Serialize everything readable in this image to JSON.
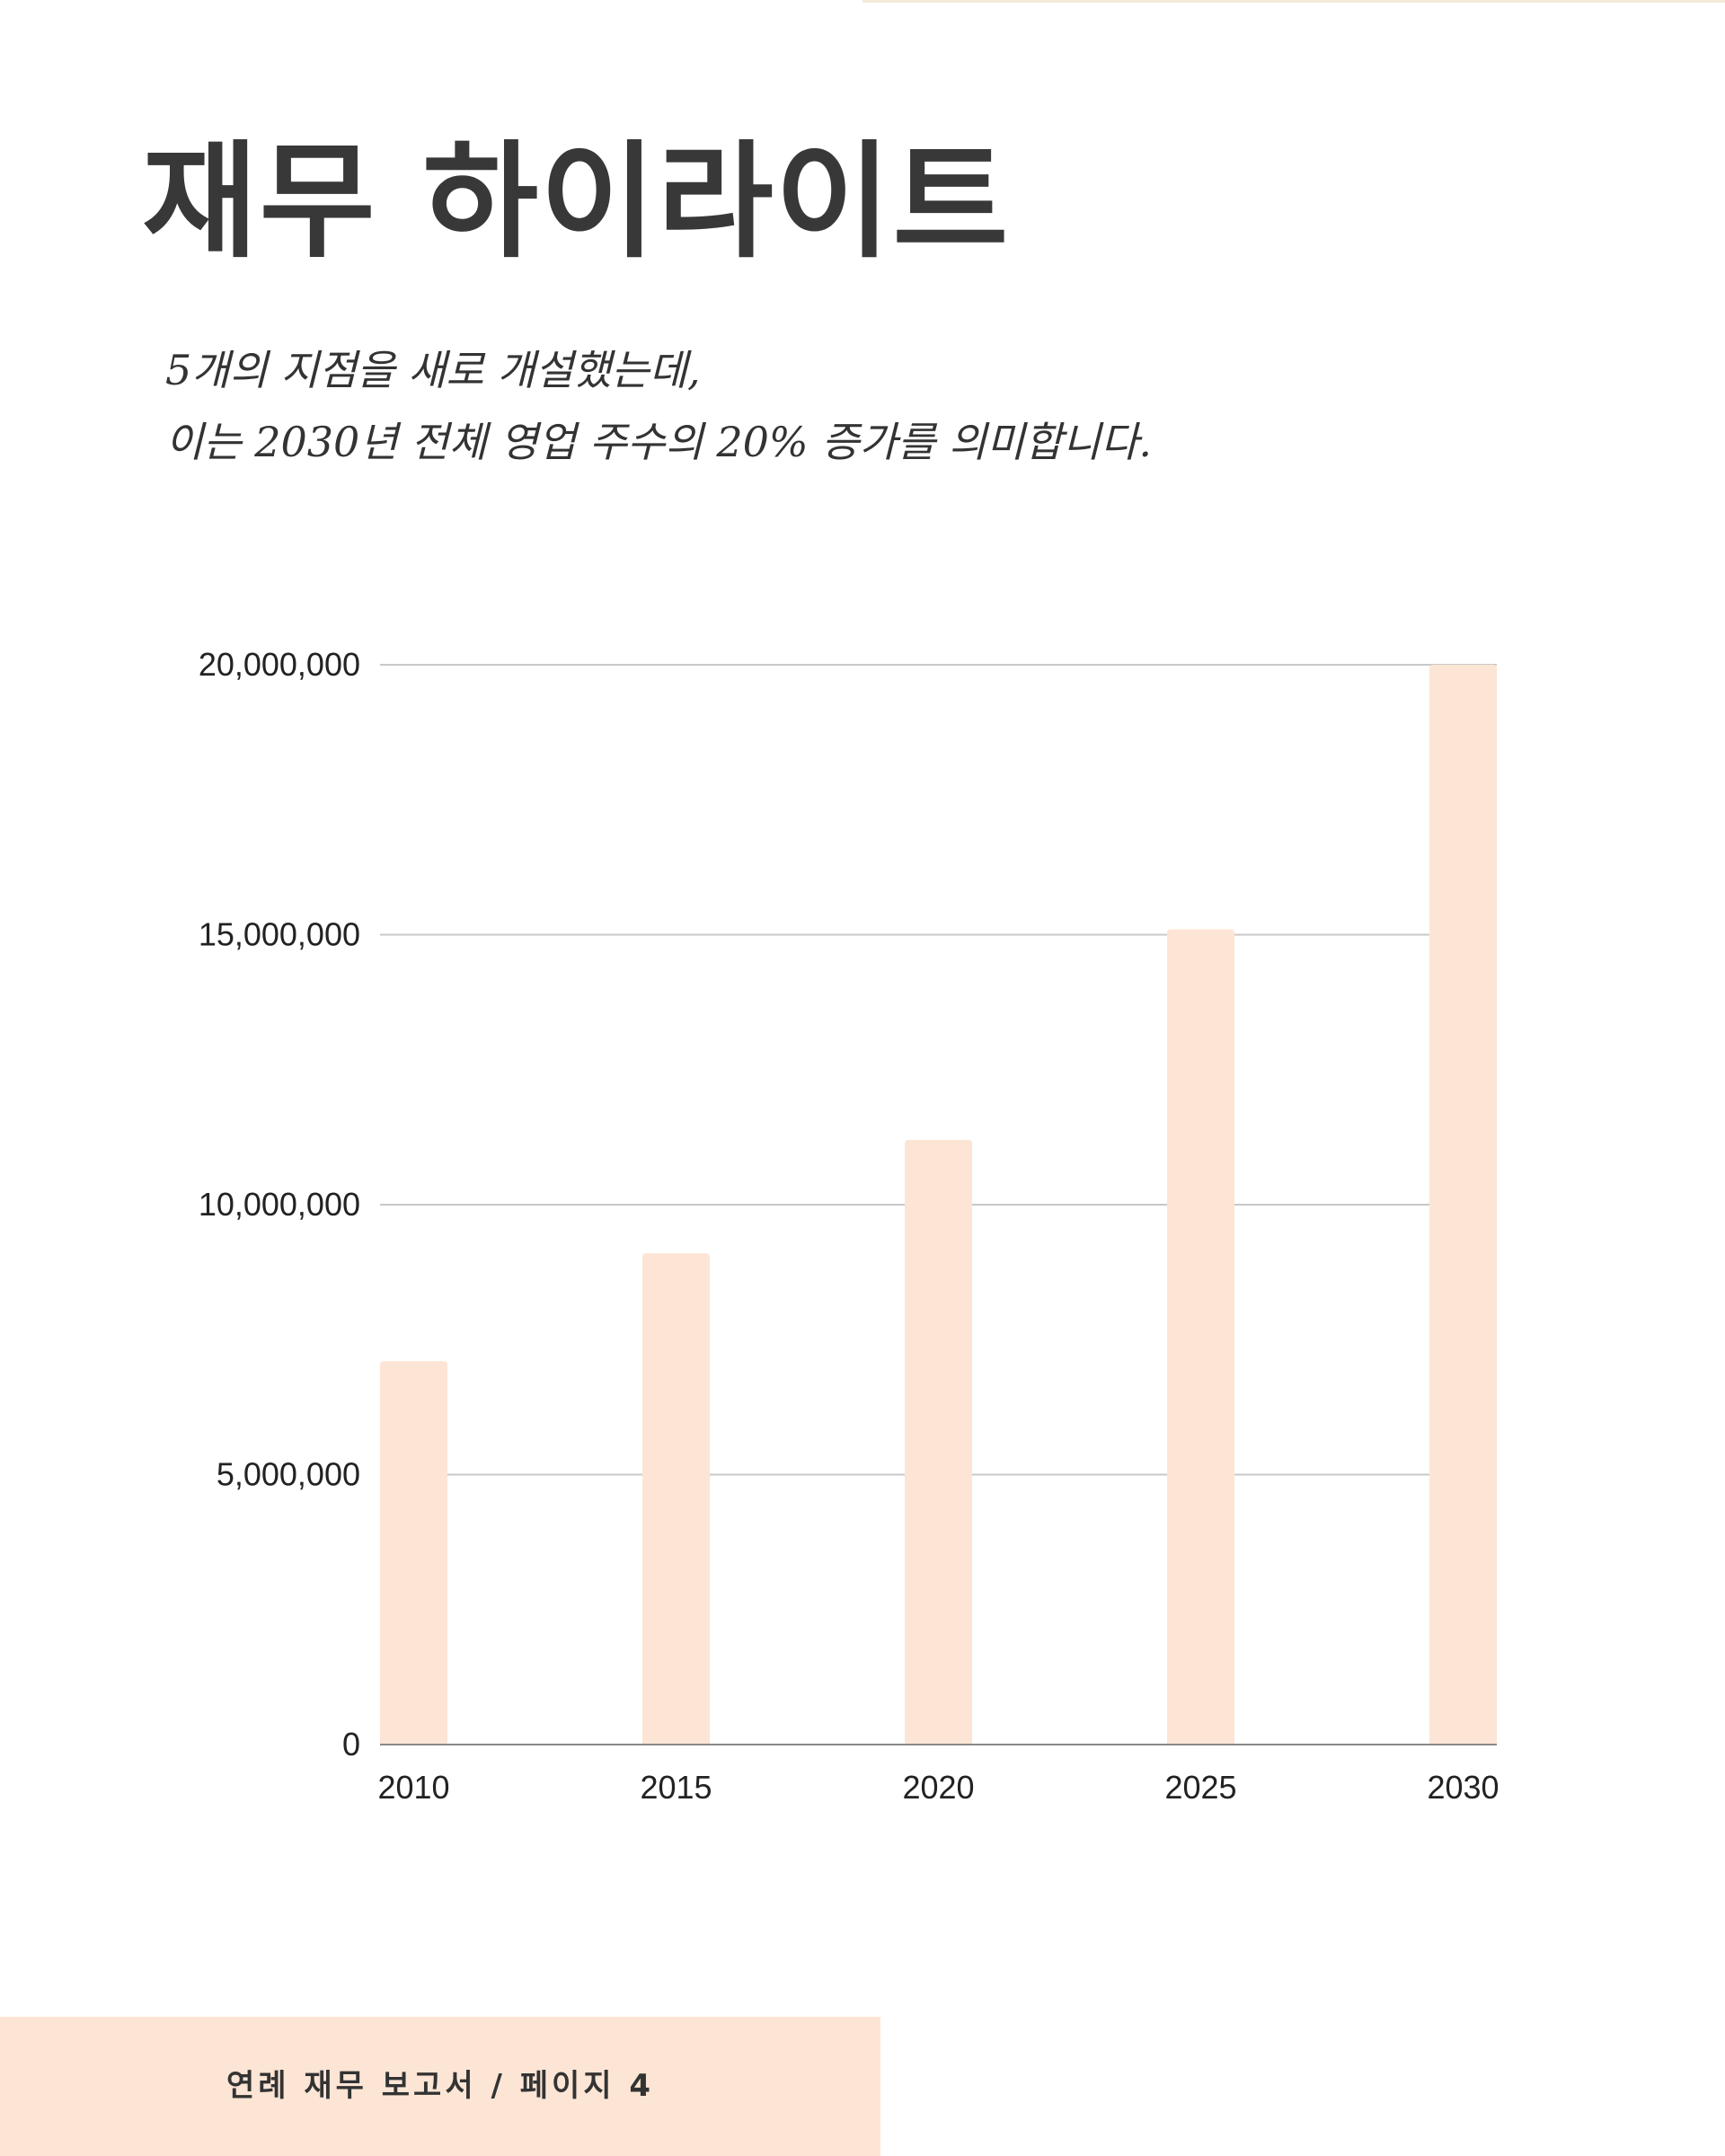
{
  "header": {
    "title": "재무 하이라이트"
  },
  "subtitle": {
    "line1": "5개의 지점을 새로 개설했는데,",
    "line2": "이는 2030년 전체 영업 주수의 20% 증가를 의미합니다."
  },
  "chart_data": {
    "type": "bar",
    "title": "",
    "xlabel": "",
    "ylabel": "",
    "categories": [
      "2010",
      "2015",
      "2020",
      "2025",
      "2030"
    ],
    "values": [
      7100000,
      9100000,
      11200000,
      15100000,
      20000000
    ],
    "ylim": [
      0,
      20000000
    ],
    "yticks": [
      0,
      5000000,
      10000000,
      15000000,
      20000000
    ],
    "ytick_labels": [
      "0",
      "5,000,000",
      "10,000,000",
      "15,000,000",
      "20,000,000"
    ],
    "grid": true,
    "legend": "none",
    "bar_color": "#fde5d5"
  },
  "footer": {
    "text": "연례 재무 보고서 / 페이지 4"
  }
}
